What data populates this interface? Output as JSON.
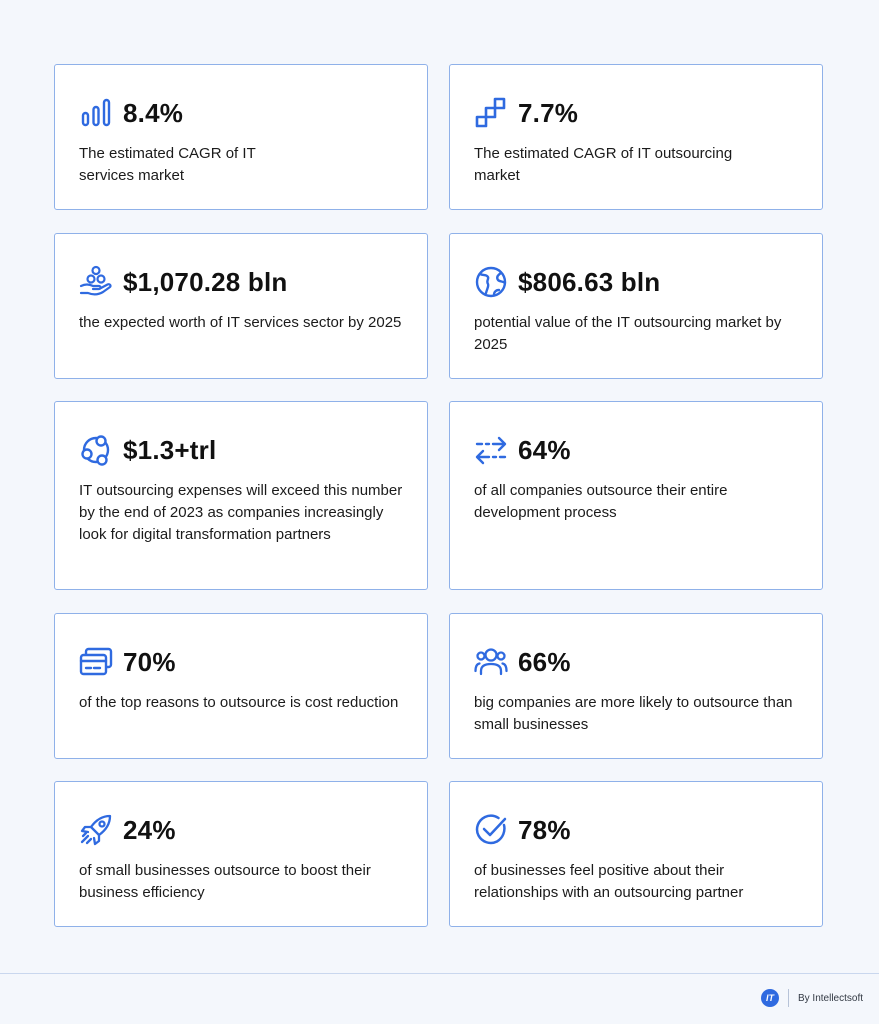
{
  "cards": [
    {
      "icon": "bar-chart-icon",
      "stat": "8.4%",
      "desc": "The estimated CAGR of IT services market"
    },
    {
      "icon": "steps-icon",
      "stat": "7.7%",
      "desc": "The estimated CAGR of IT outsourcing market"
    },
    {
      "icon": "hand-coins-icon",
      "stat": "$1,070.28 bln",
      "desc": "the expected worth of IT services sector by 2025"
    },
    {
      "icon": "globe-icon",
      "stat": "$806.63 bln",
      "desc": "potential value of the IT outsourcing market by 2025"
    },
    {
      "icon": "network-nodes-icon",
      "stat": "$1.3+trl",
      "desc": "IT outsourcing expenses will exceed this number by the end of 2023 as companies increasingly look for digital transformation partners"
    },
    {
      "icon": "arrows-exchange-icon",
      "stat": "64%",
      "desc": "of all companies outsource their entire development process"
    },
    {
      "icon": "credit-card-icon",
      "stat": "70%",
      "desc": "of the top reasons to outsource is cost reduction"
    },
    {
      "icon": "users-group-icon",
      "stat": "66%",
      "desc": "big companies are more likely to outsource than small businesses"
    },
    {
      "icon": "rocket-icon",
      "stat": "24%",
      "desc": "of small businesses outsource to boost their business efficiency"
    },
    {
      "icon": "check-circle-icon",
      "stat": "78%",
      "desc": "of businesses feel positive about their relationships with an outsourcing partner"
    }
  ],
  "footer": {
    "logo_text": "IT",
    "by_text": "By Intellectsoft"
  },
  "colors": {
    "accent": "#2f6ae0",
    "card_border": "#8fb1e9",
    "background": "#f4f7fc"
  }
}
